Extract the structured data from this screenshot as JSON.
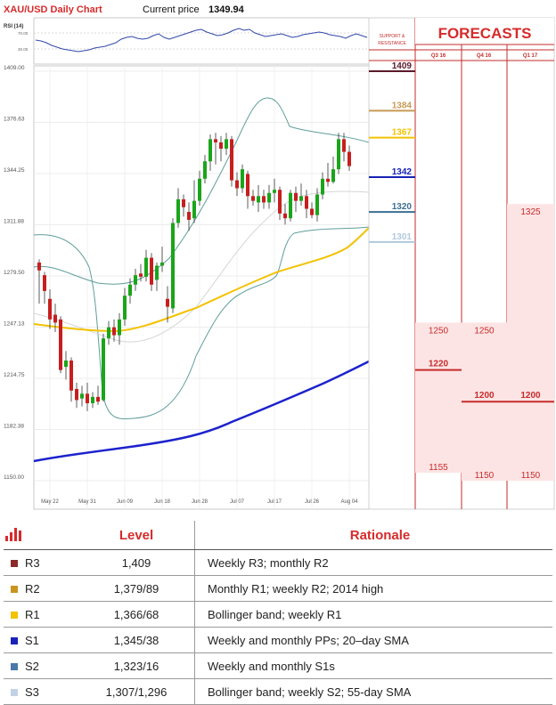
{
  "header": {
    "title": "XAU/USD Daily Chart",
    "price_label": "Current price",
    "price_value": "1349.94"
  },
  "chart_data": {
    "type": "candlestick",
    "y_ticks": [
      "1409.00",
      "1376.63",
      "1344.25",
      "1311.88",
      "1279.50",
      "1247.13",
      "1214.75",
      "1182.38",
      "1150.00"
    ],
    "ylim": [
      1150,
      1409
    ],
    "x_ticks": [
      {
        "label": "May 22",
        "idx": 2
      },
      {
        "label": "May 31",
        "idx": 9
      },
      {
        "label": "Jun 09",
        "idx": 16
      },
      {
        "label": "Jun 18",
        "idx": 23
      },
      {
        "label": "Jun 28",
        "idx": 30
      },
      {
        "label": "Jul 07",
        "idx": 37
      },
      {
        "label": "Jul 17",
        "idx": 44
      },
      {
        "label": "Jul 26",
        "idx": 51
      },
      {
        "label": "Aug 04",
        "idx": 58
      }
    ],
    "candles": [
      [
        1288,
        1283,
        1290,
        1262
      ],
      [
        1280,
        1270,
        1282,
        1262
      ],
      [
        1265,
        1252,
        1271,
        1246
      ],
      [
        1255,
        1250,
        1262,
        1244
      ],
      [
        1252,
        1220,
        1254,
        1218
      ],
      [
        1222,
        1226,
        1232,
        1214
      ],
      [
        1226,
        1207,
        1228,
        1200
      ],
      [
        1208,
        1201,
        1212,
        1196
      ],
      [
        1202,
        1205,
        1210,
        1197
      ],
      [
        1205,
        1199,
        1212,
        1194
      ],
      [
        1199,
        1203,
        1206,
        1196
      ],
      [
        1203,
        1200,
        1210,
        1198
      ],
      [
        1201,
        1240,
        1243,
        1200
      ],
      [
        1240,
        1247,
        1251,
        1236
      ],
      [
        1247,
        1242,
        1252,
        1238
      ],
      [
        1242,
        1252,
        1256,
        1236
      ],
      [
        1252,
        1267,
        1272,
        1248
      ],
      [
        1267,
        1274,
        1278,
        1262
      ],
      [
        1274,
        1280,
        1284,
        1270
      ],
      [
        1281,
        1279,
        1287,
        1276
      ],
      [
        1279,
        1291,
        1296,
        1276
      ],
      [
        1291,
        1274,
        1294,
        1270
      ],
      [
        1277,
        1286,
        1288,
        1270
      ],
      [
        1286,
        1288,
        1298,
        1282
      ],
      [
        1265,
        1260,
        1273,
        1250
      ],
      [
        1259,
        1313,
        1316,
        1256
      ],
      [
        1313,
        1328,
        1335,
        1310
      ],
      [
        1328,
        1323,
        1331,
        1317
      ],
      [
        1320,
        1315,
        1326,
        1308
      ],
      [
        1316,
        1327,
        1340,
        1313
      ],
      [
        1327,
        1341,
        1346,
        1324
      ],
      [
        1341,
        1352,
        1356,
        1338
      ],
      [
        1352,
        1366,
        1369,
        1346
      ],
      [
        1366,
        1364,
        1370,
        1350
      ],
      [
        1364,
        1360,
        1368,
        1352
      ],
      [
        1360,
        1366,
        1370,
        1356
      ],
      [
        1366,
        1340,
        1368,
        1336
      ],
      [
        1340,
        1335,
        1345,
        1330
      ],
      [
        1335,
        1347,
        1350,
        1332
      ],
      [
        1344,
        1330,
        1346,
        1322
      ],
      [
        1330,
        1327,
        1334,
        1324
      ],
      [
        1326,
        1330,
        1337,
        1320
      ],
      [
        1330,
        1326,
        1334,
        1322
      ],
      [
        1326,
        1332,
        1337,
        1322
      ],
      [
        1332,
        1334,
        1341,
        1326
      ],
      [
        1334,
        1319,
        1336,
        1315
      ],
      [
        1319,
        1316,
        1325,
        1312
      ],
      [
        1316,
        1332,
        1334,
        1314
      ],
      [
        1332,
        1327,
        1336,
        1320
      ],
      [
        1327,
        1330,
        1338,
        1324
      ],
      [
        1330,
        1322,
        1334,
        1316
      ],
      [
        1322,
        1318,
        1326,
        1316
      ],
      [
        1318,
        1331,
        1335,
        1314
      ],
      [
        1331,
        1341,
        1345,
        1328
      ],
      [
        1341,
        1339,
        1351,
        1336
      ],
      [
        1339,
        1347,
        1355,
        1338
      ],
      [
        1347,
        1366,
        1370,
        1344
      ],
      [
        1366,
        1358,
        1370,
        1352
      ],
      [
        1358,
        1349,
        1362,
        1346
      ]
    ],
    "rsi": {
      "label": "RSI (14)",
      "levels": [
        "70.00",
        "30.00"
      ]
    },
    "levels": [
      {
        "value": "1409",
        "label": "1409",
        "color": "#5a1a2a"
      },
      {
        "value": "1384",
        "label": "1384",
        "color": "#c79a55"
      },
      {
        "value": "1367",
        "label": "1367",
        "color": "#f3c200"
      },
      {
        "value": "1342",
        "label": "1342",
        "color": "#1822b8"
      },
      {
        "value": "1320",
        "label": "1320",
        "color": "#3a6f94"
      },
      {
        "value": "1301",
        "label": "1301",
        "color": "#b0c8dc"
      }
    ],
    "forecasts": {
      "title": "FORECASTS",
      "sr_label_1": "SUPPORT &",
      "sr_label_2": "RESISTANCE",
      "quarters": [
        "Q3 16",
        "Q4 16",
        "Q1 17"
      ],
      "values": [
        {
          "col": 0,
          "high": "1250",
          "mid": "1220",
          "low": "1155"
        },
        {
          "col": 1,
          "high": "1250",
          "mid": "1200",
          "low": "1150"
        },
        {
          "col": 2,
          "high": "1325",
          "mid": "1200",
          "low": "1150"
        }
      ]
    }
  },
  "table": {
    "headers": [
      "Level",
      "Rationale"
    ],
    "rows": [
      {
        "code": "R3",
        "level": "1,409",
        "rationale": "Weekly R3; monthly R2",
        "color": "#8b2a2a"
      },
      {
        "code": "R2",
        "level": "1,379/89",
        "rationale": "Monthly R1; weekly R2; 2014 high",
        "color": "#c9951e"
      },
      {
        "code": "R1",
        "level": "1,366/68",
        "rationale": "Bollinger band; weekly R1",
        "color": "#f3c200"
      },
      {
        "code": "S1",
        "level": "1,345/38",
        "rationale": "Weekly and monthly PPs; 20–day SMA",
        "color": "#1822b8"
      },
      {
        "code": "S2",
        "level": "1,323/16",
        "rationale": "Weekly and monthly S1s",
        "color": "#4a78a8"
      },
      {
        "code": "S3",
        "level": "1,307/1,296",
        "rationale": "Bollinger band; weekly S2; 55-day SMA",
        "color": "#c2d2e6"
      }
    ]
  }
}
